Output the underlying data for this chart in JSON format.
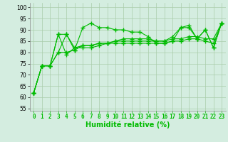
{
  "x": [
    0,
    1,
    2,
    3,
    4,
    5,
    6,
    7,
    8,
    9,
    10,
    11,
    12,
    13,
    14,
    15,
    16,
    17,
    18,
    19,
    20,
    21,
    22,
    23
  ],
  "series": [
    [
      62,
      74,
      74,
      80,
      80,
      81,
      91,
      93,
      91,
      91,
      90,
      90,
      89,
      89,
      87,
      84,
      84,
      85,
      91,
      91,
      86,
      90,
      82,
      93
    ],
    [
      62,
      74,
      74,
      88,
      79,
      82,
      82,
      82,
      83,
      84,
      84,
      84,
      84,
      84,
      84,
      84,
      84,
      85,
      85,
      86,
      86,
      85,
      84,
      93
    ],
    [
      62,
      74,
      74,
      88,
      88,
      81,
      83,
      83,
      84,
      84,
      85,
      85,
      85,
      85,
      85,
      85,
      85,
      86,
      86,
      87,
      87,
      86,
      86,
      93
    ],
    [
      62,
      74,
      74,
      80,
      88,
      82,
      83,
      83,
      84,
      84,
      85,
      86,
      86,
      86,
      86,
      85,
      85,
      87,
      91,
      92,
      86,
      90,
      82,
      93
    ]
  ],
  "line_color": "#00bb00",
  "marker": "+",
  "bg_color": "#d4ede0",
  "grid_color": "#aaccaa",
  "xlabel": "Humidité relative (%)",
  "ylabel_ticks": [
    55,
    60,
    65,
    70,
    75,
    80,
    85,
    90,
    95,
    100
  ],
  "ylim": [
    54,
    102
  ],
  "xlim": [
    -0.5,
    23.5
  ],
  "tick_fontsize": 5.5,
  "xlabel_fontsize": 7.0
}
